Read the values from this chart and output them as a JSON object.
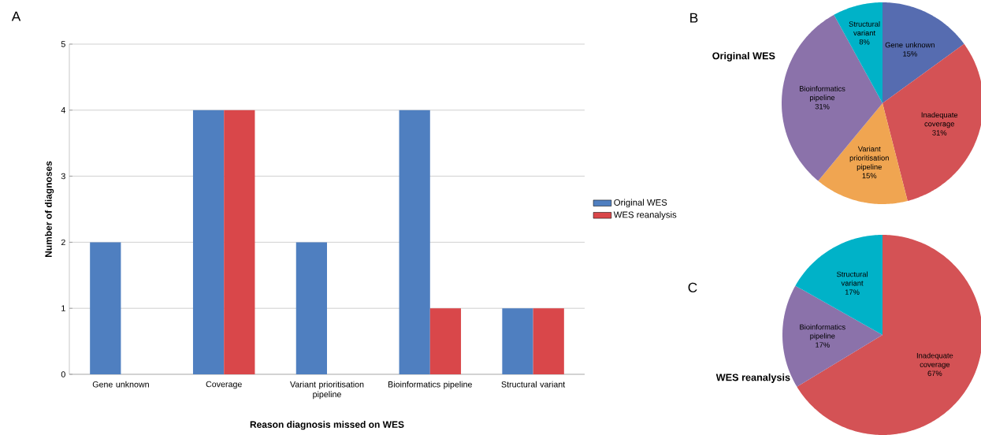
{
  "chart_data": [
    {
      "type": "bar",
      "annotations": [
        "A"
      ],
      "xlabel": "Reason diagnosis missed on WES",
      "ylabel": "Number of diagnoses",
      "categories": [
        "Gene unknown",
        "Coverage",
        "Variant prioritisation pipeline",
        "Bioinformatics pipeline",
        "Structural variant"
      ],
      "series": [
        {
          "name": "Original WES",
          "color": "#4f7fc0",
          "values": [
            2,
            4,
            2,
            4,
            1
          ]
        },
        {
          "name": "WES reanalysis",
          "color": "#d9474a",
          "values": [
            null,
            4,
            null,
            1,
            1
          ]
        }
      ],
      "ylim": [
        0,
        5
      ],
      "yticks": [
        0,
        1,
        2,
        3,
        4,
        5
      ],
      "grid": "y",
      "legend": "right"
    },
    {
      "type": "pie",
      "annotations": [
        "B"
      ],
      "title": "Original WES",
      "categories": [
        "Gene unknown",
        "Inadequate coverage",
        "Variant prioritisation pipeline",
        "Bioinformatics pipeline",
        "Structural variant"
      ],
      "values": [
        15,
        31,
        15,
        31,
        8
      ],
      "value_labels": [
        "15%",
        "31%",
        "15%",
        "31%",
        "8%"
      ],
      "colors": [
        "#566cb0",
        "#d45255",
        "#f0a551",
        "#8b72aa",
        "#00b2c8"
      ]
    },
    {
      "type": "pie",
      "annotations": [
        "C"
      ],
      "title": "WES reanalysis",
      "categories": [
        "Inadequate coverage",
        "Bioinformatics pipeline",
        "Structural variant"
      ],
      "values": [
        67,
        17,
        17
      ],
      "value_labels": [
        "67%",
        "17%",
        "17%"
      ],
      "colors": [
        "#d45255",
        "#8b72aa",
        "#00b2c8"
      ]
    }
  ]
}
